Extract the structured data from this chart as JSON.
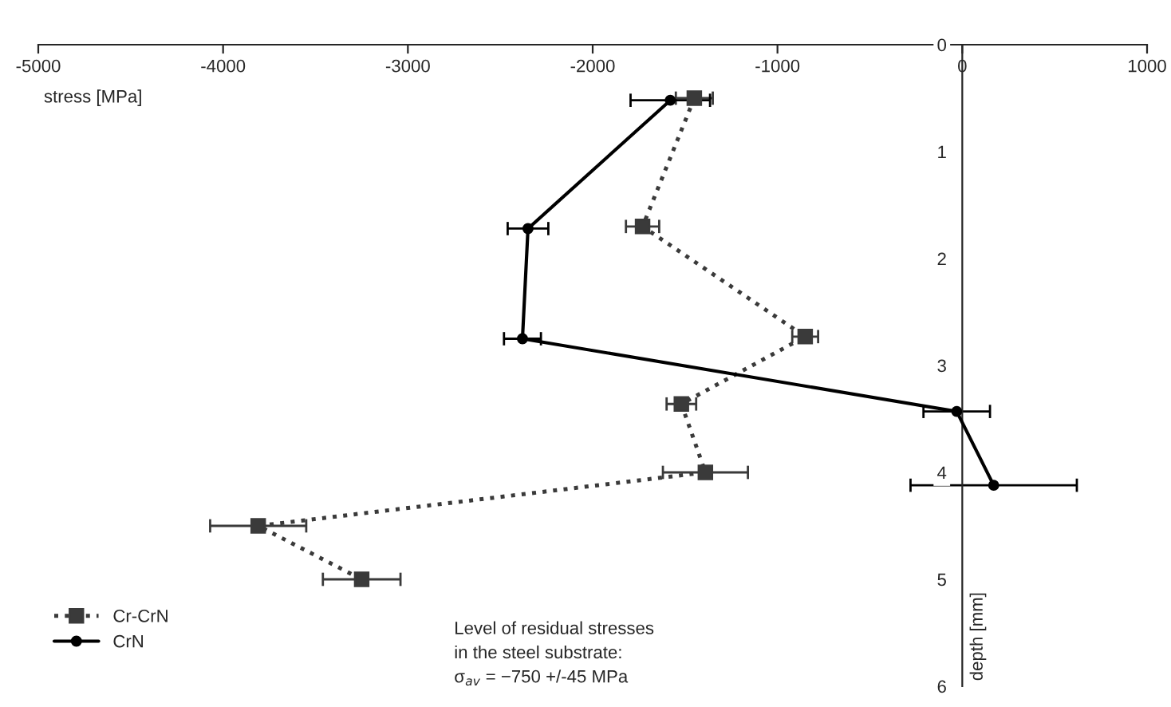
{
  "chart_data": {
    "type": "line",
    "orientation": "horizontal",
    "xlabel": "stress [MPa]",
    "ylabel": "depth [mm]",
    "xlim": [
      -5000,
      1000
    ],
    "xticks": [
      -5000,
      -4000,
      -3000,
      -2000,
      -1000,
      0,
      1000
    ],
    "ylim": [
      6,
      0
    ],
    "yticks": [
      0,
      1,
      2,
      3,
      4,
      5,
      6
    ],
    "legend": "bottom left",
    "grid": false,
    "series": [
      {
        "name": "Cr-CrN",
        "color": "#3a3a3a",
        "marker": "square",
        "line_style": "dotted",
        "x": [
          0.5,
          1.7,
          2.73,
          3.36,
          4.0,
          4.5,
          5.0
        ],
        "values": [
          -1450,
          -1730,
          -850,
          -1520,
          -1390,
          -3810,
          -3250
        ],
        "errors": [
          100,
          90,
          70,
          80,
          230,
          260,
          210
        ]
      },
      {
        "name": "CrN",
        "color": "#000000",
        "marker": "circle",
        "line_style": "solid",
        "x": [
          0.52,
          1.72,
          2.75,
          3.43,
          4.12
        ],
        "values": [
          -1580,
          -2350,
          -2380,
          -30,
          170
        ],
        "errors": [
          215,
          110,
          100,
          180,
          450
        ]
      }
    ],
    "annotations": [
      {
        "text": "Level of residual stresses\nin the steel substrate:\nσ$_{av}$ = −750 +/-45 MPa"
      }
    ]
  }
}
